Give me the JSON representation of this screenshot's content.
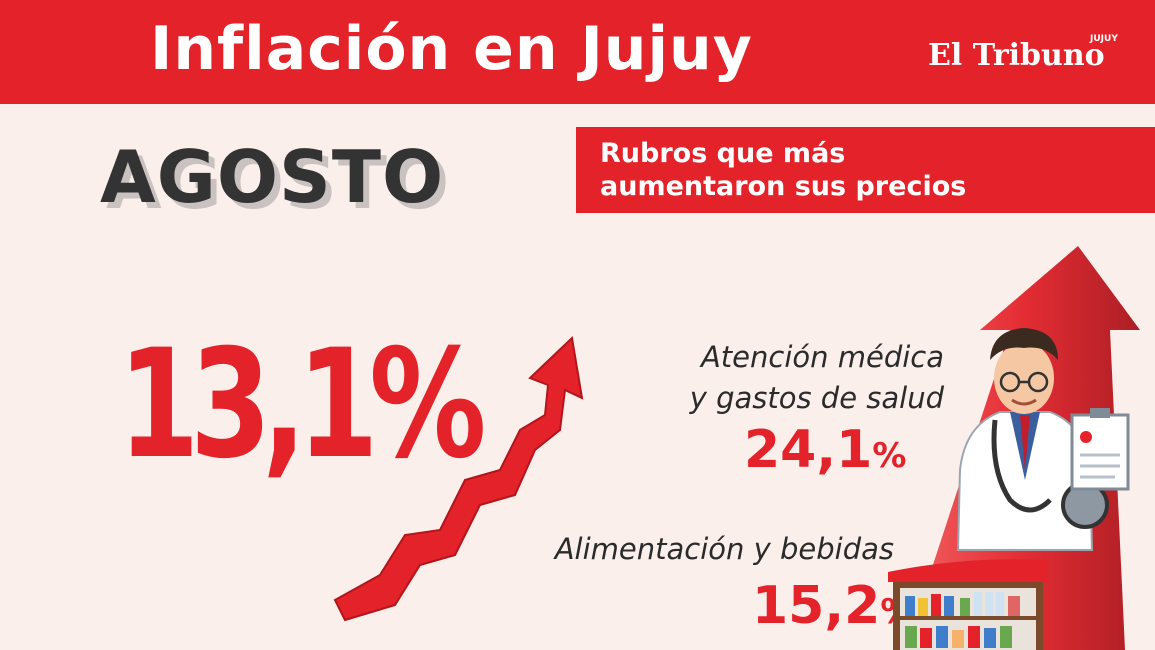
{
  "header": {
    "title": "Inflación en Jujuy",
    "logo": "El Tribuno",
    "logo_sup": "JUJUY"
  },
  "month": "AGOSTO",
  "rubros_title": [
    "Rubros que más",
    "aumentaron sus precios"
  ],
  "main_rate": "13,1%",
  "items": [
    {
      "label_lines": [
        "Atención médica",
        "y gastos de salud"
      ],
      "value": "24,1",
      "unit": "%"
    },
    {
      "label_lines": [
        "Alimentación y bebidas"
      ],
      "value": "15,2",
      "unit": "%"
    }
  ],
  "colors": {
    "accent": "#e3222a",
    "background": "#fbefec",
    "text_dark": "#333333"
  },
  "icons": [
    "zigzag-arrow-icon",
    "big-up-arrow-icon",
    "doctor-icon",
    "supermarket-shelf-icon"
  ]
}
